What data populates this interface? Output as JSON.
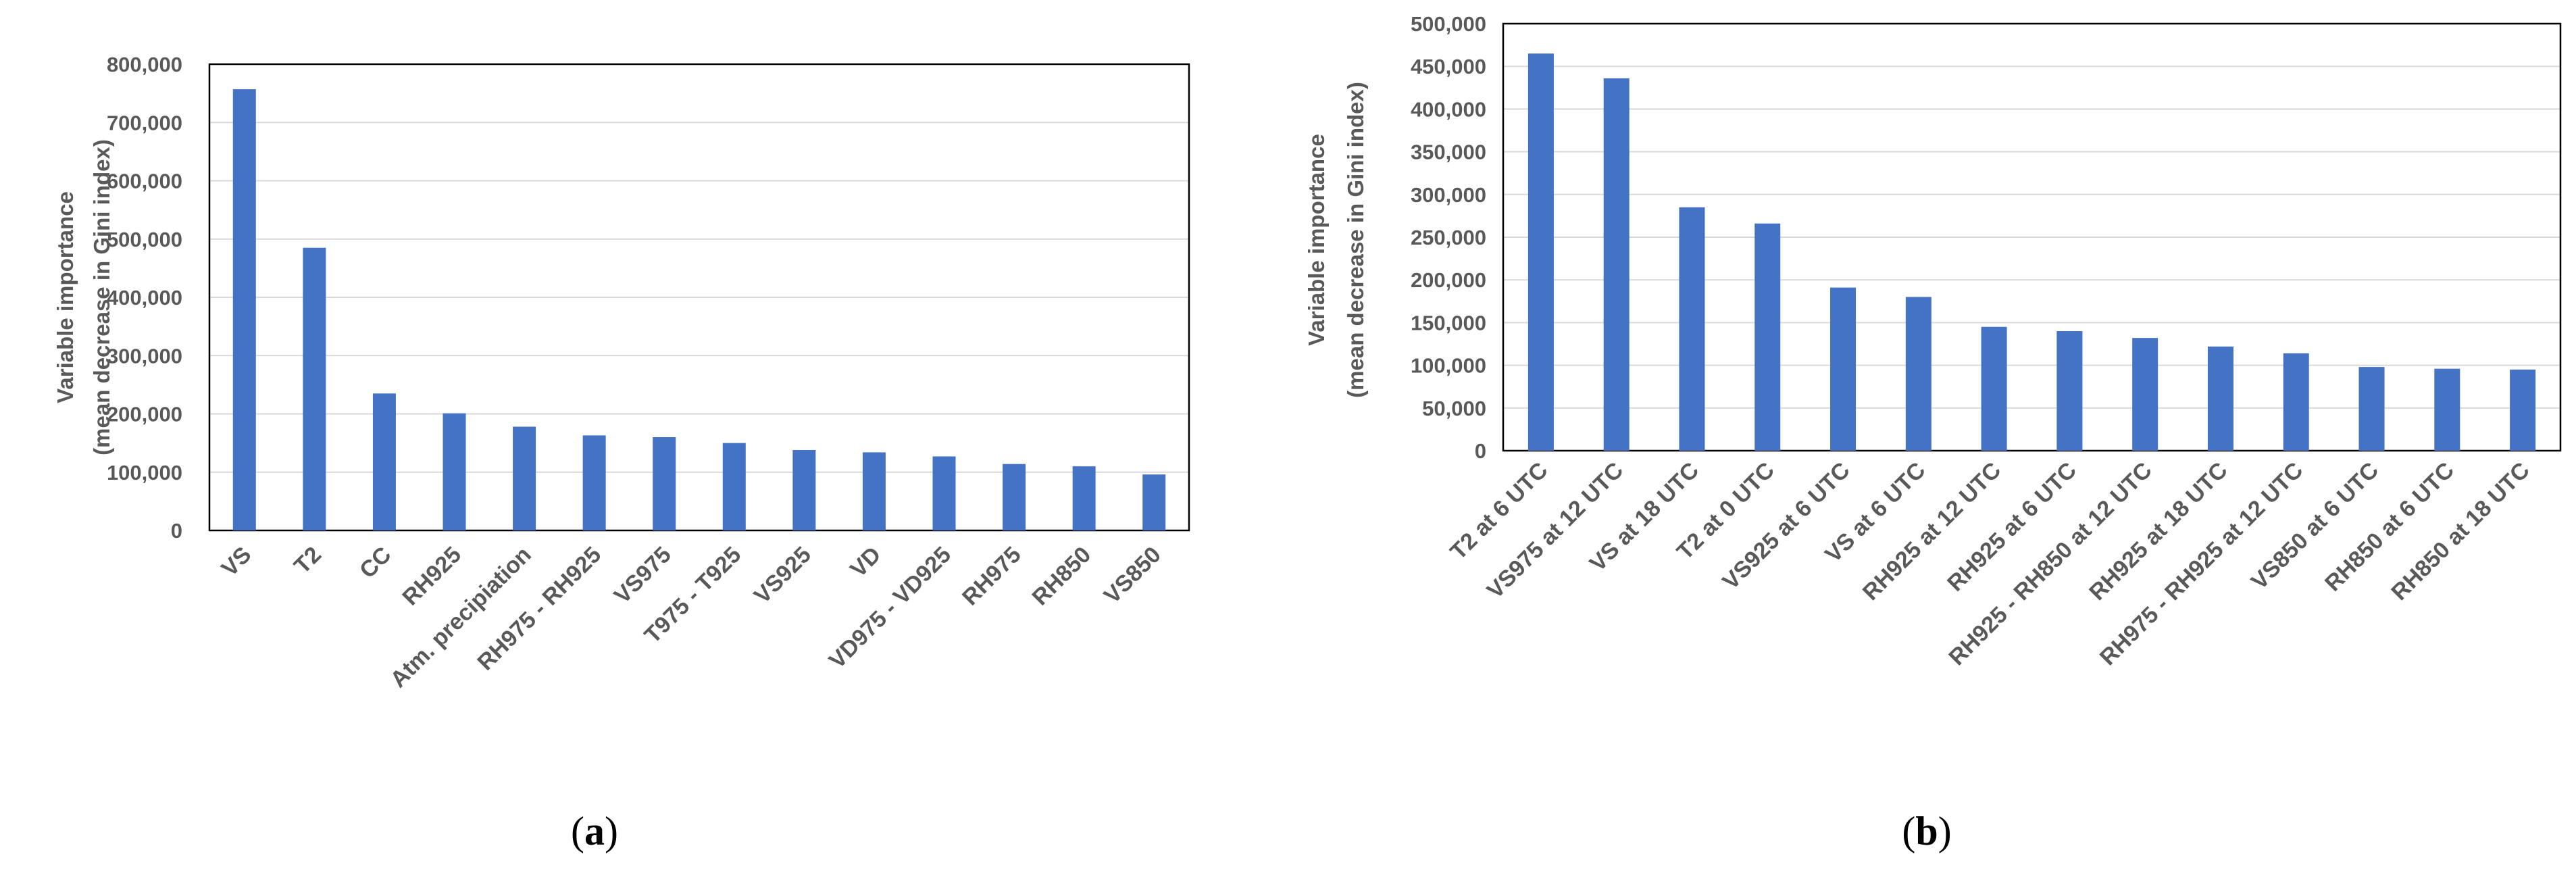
{
  "chart_data": [
    {
      "type": "bar",
      "panel_label": "(a)",
      "ylabel": [
        "Variable importance",
        "(mean decrease in Gini index)"
      ],
      "ylim": [
        0,
        800000
      ],
      "yticks": [
        "0",
        "100,000",
        "200,000",
        "300,000",
        "400,000",
        "500,000",
        "600,000",
        "700,000",
        "800,000"
      ],
      "grid": true,
      "bar_color": "#4472c4",
      "categories": [
        "VS",
        "T2",
        "CC",
        "RH925",
        "Atm. precipiation",
        "RH975 - RH925",
        "VS975",
        "T975 - T925",
        "VS925",
        "VD",
        "VD975 - VD925",
        "RH975",
        "RH850",
        "VS850"
      ],
      "values": [
        757000,
        485000,
        235000,
        201000,
        178000,
        163000,
        160000,
        150000,
        138000,
        134000,
        127000,
        114000,
        110000,
        96000
      ]
    },
    {
      "type": "bar",
      "panel_label": "(b)",
      "ylabel": [
        "Variable importance",
        "(mean decrease in Gini index)"
      ],
      "ylim": [
        0,
        500000
      ],
      "yticks": [
        "0",
        "50,000",
        "100,000",
        "150,000",
        "200,000",
        "250,000",
        "300,000",
        "350,000",
        "400,000",
        "450,000",
        "500,000"
      ],
      "grid": true,
      "bar_color": "#4472c4",
      "categories": [
        "T2 at 6 UTC",
        "VS975 at 12 UTC",
        "VS at 18 UTC",
        "T2 at  0 UTC",
        "VS925 at 6 UTC",
        "VS at 6 UTC",
        "RH925 at 12 UTC",
        "RH925 at 6 UTC",
        "RH925 - RH850 at 12 UTC",
        "RH925 at 18 UTC",
        "RH975 - RH925 at 12 UTC",
        "VS850 at 6 UTC",
        "RH850 at 6 UTC",
        "RH850 at 18 UTC"
      ],
      "values": [
        465000,
        436000,
        285000,
        266000,
        191000,
        180000,
        145000,
        140000,
        132000,
        122000,
        114000,
        98000,
        96000,
        95000
      ]
    }
  ]
}
